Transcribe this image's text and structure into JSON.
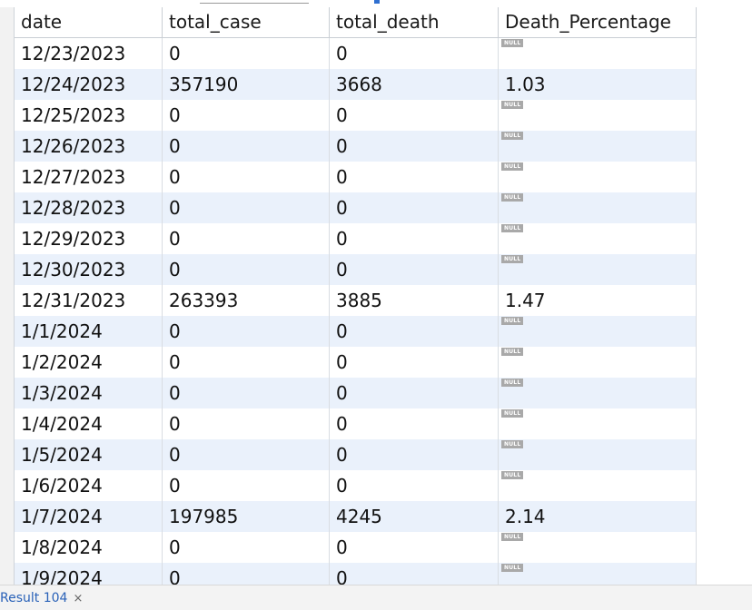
{
  "columns": [
    "date",
    "total_case",
    "total_death",
    "Death_Percentage"
  ],
  "null_label": "NULL",
  "rows": [
    {
      "date": "12/23/2023",
      "total_case": "0",
      "total_death": "0",
      "death_percentage": null
    },
    {
      "date": "12/24/2023",
      "total_case": "357190",
      "total_death": "3668",
      "death_percentage": "1.03"
    },
    {
      "date": "12/25/2023",
      "total_case": "0",
      "total_death": "0",
      "death_percentage": null
    },
    {
      "date": "12/26/2023",
      "total_case": "0",
      "total_death": "0",
      "death_percentage": null
    },
    {
      "date": "12/27/2023",
      "total_case": "0",
      "total_death": "0",
      "death_percentage": null
    },
    {
      "date": "12/28/2023",
      "total_case": "0",
      "total_death": "0",
      "death_percentage": null
    },
    {
      "date": "12/29/2023",
      "total_case": "0",
      "total_death": "0",
      "death_percentage": null
    },
    {
      "date": "12/30/2023",
      "total_case": "0",
      "total_death": "0",
      "death_percentage": null
    },
    {
      "date": "12/31/2023",
      "total_case": "263393",
      "total_death": "3885",
      "death_percentage": "1.47"
    },
    {
      "date": "1/1/2024",
      "total_case": "0",
      "total_death": "0",
      "death_percentage": null
    },
    {
      "date": "1/2/2024",
      "total_case": "0",
      "total_death": "0",
      "death_percentage": null
    },
    {
      "date": "1/3/2024",
      "total_case": "0",
      "total_death": "0",
      "death_percentage": null
    },
    {
      "date": "1/4/2024",
      "total_case": "0",
      "total_death": "0",
      "death_percentage": null
    },
    {
      "date": "1/5/2024",
      "total_case": "0",
      "total_death": "0",
      "death_percentage": null
    },
    {
      "date": "1/6/2024",
      "total_case": "0",
      "total_death": "0",
      "death_percentage": null
    },
    {
      "date": "1/7/2024",
      "total_case": "197985",
      "total_death": "4245",
      "death_percentage": "2.14"
    },
    {
      "date": "1/8/2024",
      "total_case": "0",
      "total_death": "0",
      "death_percentage": null
    },
    {
      "date": "1/9/2024",
      "total_case": "0",
      "total_death": "0",
      "death_percentage": null
    }
  ],
  "result_tab": {
    "label": "Result 104",
    "close_icon": "close-icon",
    "close_glyph": "×"
  },
  "colors": {
    "row_alt": "#eaf1fb",
    "null_badge": "#a9a9a9",
    "tab_text": "#2a62b8"
  }
}
